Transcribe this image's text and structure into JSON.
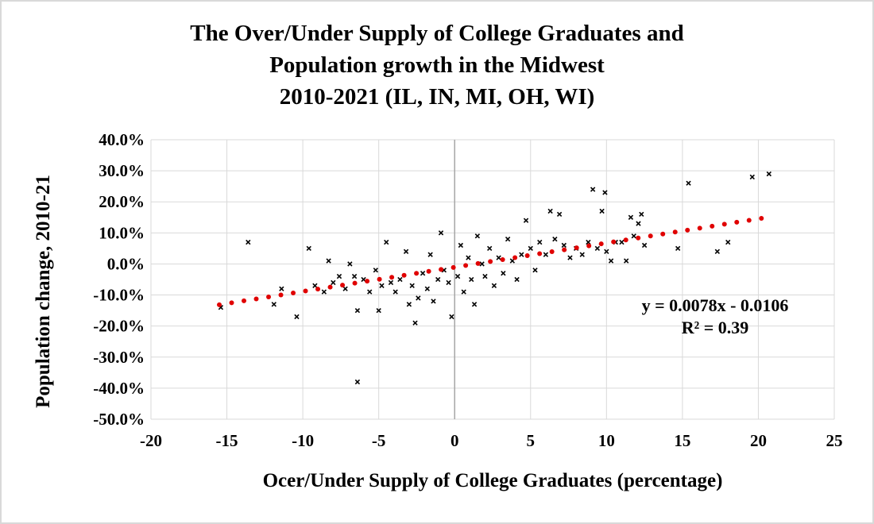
{
  "chart_data": {
    "type": "scatter",
    "title_lines": [
      "The Over/Under Supply of College Graduates and",
      "Population growth in the Midwest",
      "2010-2021 (IL, IN, MI, OH, WI)"
    ],
    "xlabel": "Ocer/Under Supply of College Graduates (percentage)",
    "ylabel": "Population change, 2010-21",
    "xlim": [
      -20,
      25
    ],
    "ylim": [
      -0.5,
      0.4
    ],
    "x_ticks": [
      -20,
      -15,
      -10,
      -5,
      0,
      5,
      10,
      15,
      20,
      25
    ],
    "x_tick_labels": [
      "-20",
      "-15",
      "-10",
      "-5",
      "0",
      "5",
      "10",
      "15",
      "20",
      "25"
    ],
    "y_ticks": [
      0.4,
      0.3,
      0.2,
      0.1,
      0.0,
      -0.1,
      -0.2,
      -0.3,
      -0.4,
      -0.5
    ],
    "y_tick_labels": [
      "40.0%",
      "30.0%",
      "20.0%",
      "10.0%",
      "0.0%",
      "-10.0%",
      "-20.0%",
      "-30.0%",
      "-40.0%",
      "-50.0%"
    ],
    "grid": true,
    "trendline": {
      "slope": 0.0078,
      "intercept": -0.0106,
      "x_range": [
        -15.5,
        20.2
      ],
      "color": "#e00000",
      "equation": "y = 0.0078x - 0.0106",
      "r_squared_label": "R² = 0.39"
    },
    "marker_color": "#000000",
    "series": [
      {
        "points": [
          [
            -15.4,
            -0.14
          ],
          [
            -13.6,
            0.07
          ],
          [
            -11.9,
            -0.13
          ],
          [
            -11.4,
            -0.08
          ],
          [
            -10.4,
            -0.17
          ],
          [
            -9.6,
            0.05
          ],
          [
            -9.2,
            -0.07
          ],
          [
            -8.6,
            -0.09
          ],
          [
            -8.3,
            0.01
          ],
          [
            -8.0,
            -0.06
          ],
          [
            -7.6,
            -0.04
          ],
          [
            -7.2,
            -0.08
          ],
          [
            -6.9,
            0.0
          ],
          [
            -6.6,
            -0.04
          ],
          [
            -6.4,
            -0.15
          ],
          [
            -6.4,
            -0.38
          ],
          [
            -6.0,
            -0.05
          ],
          [
            -5.6,
            -0.09
          ],
          [
            -5.2,
            -0.02
          ],
          [
            -5.0,
            -0.15
          ],
          [
            -4.8,
            -0.07
          ],
          [
            -4.5,
            0.07
          ],
          [
            -4.2,
            -0.06
          ],
          [
            -3.9,
            -0.09
          ],
          [
            -3.6,
            -0.05
          ],
          [
            -3.2,
            0.04
          ],
          [
            -3.0,
            -0.13
          ],
          [
            -2.8,
            -0.07
          ],
          [
            -2.6,
            -0.19
          ],
          [
            -2.4,
            -0.11
          ],
          [
            -2.1,
            -0.03
          ],
          [
            -1.8,
            -0.08
          ],
          [
            -1.6,
            0.03
          ],
          [
            -1.4,
            -0.12
          ],
          [
            -1.1,
            -0.05
          ],
          [
            -0.9,
            0.1
          ],
          [
            -0.7,
            -0.02
          ],
          [
            -0.4,
            -0.06
          ],
          [
            -0.2,
            -0.17
          ],
          [
            0.2,
            -0.04
          ],
          [
            0.4,
            0.06
          ],
          [
            0.6,
            -0.09
          ],
          [
            0.9,
            0.02
          ],
          [
            1.1,
            -0.05
          ],
          [
            1.3,
            -0.13
          ],
          [
            1.5,
            0.09
          ],
          [
            1.8,
            0.0
          ],
          [
            2.0,
            -0.04
          ],
          [
            2.3,
            0.05
          ],
          [
            2.6,
            -0.07
          ],
          [
            2.9,
            0.02
          ],
          [
            3.2,
            -0.03
          ],
          [
            3.5,
            0.08
          ],
          [
            3.8,
            0.01
          ],
          [
            4.1,
            -0.05
          ],
          [
            4.4,
            0.03
          ],
          [
            4.7,
            0.14
          ],
          [
            5.0,
            0.05
          ],
          [
            5.3,
            -0.02
          ],
          [
            5.6,
            0.07
          ],
          [
            6.0,
            0.03
          ],
          [
            6.3,
            0.17
          ],
          [
            6.6,
            0.08
          ],
          [
            6.9,
            0.16
          ],
          [
            7.2,
            0.06
          ],
          [
            7.6,
            0.02
          ],
          [
            8.0,
            0.05
          ],
          [
            8.4,
            0.03
          ],
          [
            8.8,
            0.07
          ],
          [
            9.1,
            0.24
          ],
          [
            9.4,
            0.05
          ],
          [
            9.7,
            0.17
          ],
          [
            9.9,
            0.23
          ],
          [
            10.0,
            0.04
          ],
          [
            10.3,
            0.01
          ],
          [
            10.6,
            0.07
          ],
          [
            11.0,
            0.07
          ],
          [
            11.3,
            0.01
          ],
          [
            11.6,
            0.15
          ],
          [
            11.8,
            0.09
          ],
          [
            12.1,
            0.13
          ],
          [
            12.3,
            0.16
          ],
          [
            12.5,
            0.06
          ],
          [
            14.7,
            0.05
          ],
          [
            15.4,
            0.26
          ],
          [
            17.3,
            0.04
          ],
          [
            18.0,
            0.07
          ],
          [
            19.6,
            0.28
          ],
          [
            20.7,
            0.29
          ]
        ]
      }
    ]
  }
}
